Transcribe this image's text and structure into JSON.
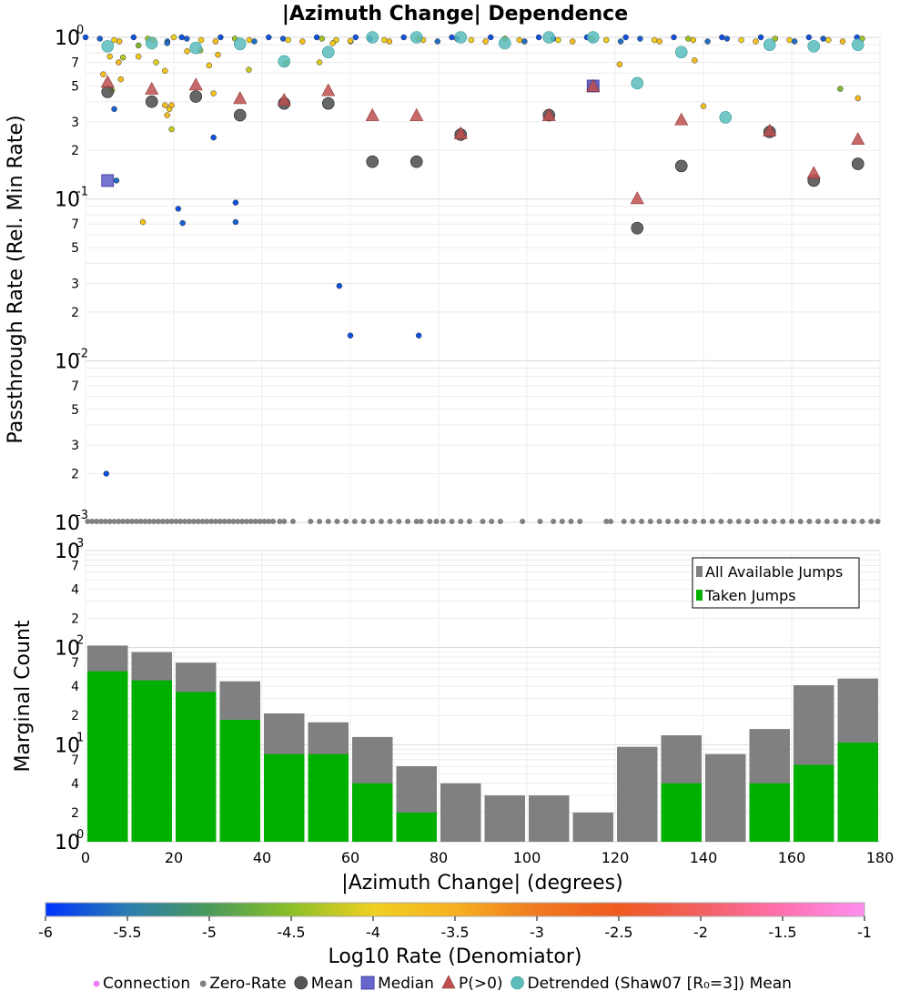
{
  "title": "|Azimuth Change| Dependence",
  "chart_data": [
    {
      "type": "scatter",
      "ylabel": "Passthrough Rate (Rel. Min Rate)",
      "yscale": "log",
      "ylim": [
        0.001,
        1
      ],
      "xlim": [
        0,
        180
      ],
      "grid": true,
      "y_ticks": [
        {
          "v": 1,
          "mant": "10",
          "exp": "0"
        },
        {
          "v": 0.7,
          "mant": "7",
          "exp": ""
        },
        {
          "v": 0.5,
          "mant": "5",
          "exp": ""
        },
        {
          "v": 0.3,
          "mant": "3",
          "exp": ""
        },
        {
          "v": 0.2,
          "mant": "2",
          "exp": ""
        },
        {
          "v": 0.1,
          "mant": "10",
          "exp": "-1"
        },
        {
          "v": 0.07,
          "mant": "7",
          "exp": ""
        },
        {
          "v": 0.05,
          "mant": "5",
          "exp": ""
        },
        {
          "v": 0.03,
          "mant": "3",
          "exp": ""
        },
        {
          "v": 0.02,
          "mant": "2",
          "exp": ""
        },
        {
          "v": 0.01,
          "mant": "10",
          "exp": "-2"
        },
        {
          "v": 0.007,
          "mant": "7",
          "exp": ""
        },
        {
          "v": 0.005,
          "mant": "5",
          "exp": ""
        },
        {
          "v": 0.003,
          "mant": "3",
          "exp": ""
        },
        {
          "v": 0.002,
          "mant": "2",
          "exp": ""
        },
        {
          "v": 0.001,
          "mant": "10",
          "exp": "-3"
        }
      ],
      "series": [
        {
          "name": "Mean",
          "color": "#555555",
          "x": [
            5,
            15,
            25,
            35,
            45,
            55,
            65,
            75,
            85,
            105,
            115,
            125,
            135,
            155,
            165,
            175
          ],
          "y": [
            0.46,
            0.4,
            0.43,
            0.33,
            0.39,
            0.39,
            0.17,
            0.17,
            0.25,
            0.33,
            0.5,
            0.066,
            0.16,
            0.26,
            0.13,
            0.165
          ]
        },
        {
          "name": "Median",
          "color": "#6666cc",
          "x": [
            5,
            115
          ],
          "y": [
            0.13,
            0.5
          ]
        },
        {
          "name": "P(>0)",
          "color": "#c05050",
          "x": [
            5,
            15,
            25,
            35,
            45,
            55,
            65,
            75,
            85,
            105,
            115,
            125,
            135,
            155,
            165,
            175
          ],
          "y": [
            0.53,
            0.48,
            0.51,
            0.42,
            0.41,
            0.47,
            0.33,
            0.33,
            0.255,
            0.33,
            0.5,
            0.101,
            0.31,
            0.265,
            0.145,
            0.235
          ]
        },
        {
          "name": "Detrended (Shaw07 [R₀=3]) Mean",
          "color": "#5bbcbc",
          "x": [
            5,
            15,
            25,
            35,
            45,
            55,
            65,
            75,
            85,
            95,
            105,
            115,
            125,
            135,
            145,
            155,
            165,
            175
          ],
          "y": [
            0.88,
            0.92,
            0.86,
            0.91,
            0.71,
            0.81,
            1.0,
            1.0,
            1.0,
            0.92,
            1.0,
            1.0,
            0.52,
            0.81,
            0.32,
            0.9,
            0.88,
            0.9
          ]
        },
        {
          "name": "Connection",
          "points": [
            {
              "x": 4.7,
              "y": 0.002,
              "r": -5.8
            },
            {
              "x": 6.5,
              "y": 0.36,
              "r": -5.7
            },
            {
              "x": 7,
              "y": 0.13,
              "r": -5.6
            },
            {
              "x": 21,
              "y": 0.087,
              "r": -5.8
            },
            {
              "x": 22,
              "y": 0.071,
              "r": -5.7
            },
            {
              "x": 29,
              "y": 0.24,
              "r": -5.8
            },
            {
              "x": 34,
              "y": 0.095,
              "r": -5.8
            },
            {
              "x": 34,
              "y": 0.072,
              "r": -5.7
            },
            {
              "x": 57.5,
              "y": 0.029,
              "r": -5.8
            },
            {
              "x": 60,
              "y": 0.0143,
              "r": -5.8
            },
            {
              "x": 75.5,
              "y": 0.0143,
              "r": -5.8
            },
            {
              "x": 6,
              "y": 0.47,
              "r": -4.2
            },
            {
              "x": 4,
              "y": 0.59,
              "r": -3.7
            },
            {
              "x": 5.5,
              "y": 0.76,
              "r": -3.8
            },
            {
              "x": 7.5,
              "y": 0.7,
              "r": -3.6
            },
            {
              "x": 8,
              "y": 0.55,
              "r": -3.7
            },
            {
              "x": 8.5,
              "y": 0.75,
              "r": -4.3
            },
            {
              "x": 12,
              "y": 0.76,
              "r": -3.9
            },
            {
              "x": 13,
              "y": 0.072,
              "r": -3.8
            },
            {
              "x": 12,
              "y": 0.89,
              "r": -4.6
            },
            {
              "x": 16,
              "y": 0.7,
              "r": -4.1
            },
            {
              "x": 18,
              "y": 0.62,
              "r": -3.8
            },
            {
              "x": 18,
              "y": 0.38,
              "r": -3.7
            },
            {
              "x": 18.5,
              "y": 0.33,
              "r": -3.7
            },
            {
              "x": 19,
              "y": 0.36,
              "r": -3.9
            },
            {
              "x": 19.5,
              "y": 0.38,
              "r": -3.6
            },
            {
              "x": 19.5,
              "y": 0.27,
              "r": -4.2
            },
            {
              "x": 18.5,
              "y": 0.92,
              "r": -5.6
            },
            {
              "x": 23,
              "y": 0.82,
              "r": -3.8
            },
            {
              "x": 26,
              "y": 0.83,
              "r": -4.3
            },
            {
              "x": 28,
              "y": 0.67,
              "r": -3.9
            },
            {
              "x": 29,
              "y": 0.45,
              "r": -3.8
            },
            {
              "x": 30,
              "y": 0.78,
              "r": -3.7
            },
            {
              "x": 37,
              "y": 0.63,
              "r": -4.2
            },
            {
              "x": 45.5,
              "y": 0.69,
              "r": -4.5
            },
            {
              "x": 53,
              "y": 0.7,
              "r": -4.1
            },
            {
              "x": 56,
              "y": 0.92,
              "r": -3.9
            },
            {
              "x": 121,
              "y": 0.68,
              "r": -3.7
            },
            {
              "x": 138,
              "y": 0.72,
              "r": -3.7
            },
            {
              "x": 140,
              "y": 0.375,
              "r": -3.7
            },
            {
              "x": 171,
              "y": 0.48,
              "r": -4.6
            },
            {
              "x": 175,
              "y": 0.42,
              "r": -3.6
            },
            {
              "x": 155,
              "y": 0.265,
              "r": -4.8
            },
            {
              "x": 20,
              "y": 1.0,
              "r": -4.0
            },
            {
              "x": 60,
              "y": 0.95,
              "r": -3.8
            }
          ]
        },
        {
          "name": "Zero-Rate",
          "color": "#808080",
          "x": [
            0.5,
            1.5,
            2.5,
            3.5,
            4.5,
            5.5,
            6.5,
            7.5,
            8.5,
            9.5,
            10.5,
            11.5,
            12.5,
            13.5,
            14.5,
            15.5,
            16.5,
            17.5,
            18.5,
            19.5,
            20.5,
            21.5,
            22.5,
            23.5,
            24.5,
            25.5,
            26.5,
            27.5,
            28.5,
            29.5,
            30.5,
            31.5,
            32.5,
            33.5,
            34.5,
            35.5,
            36.5,
            37.5,
            38.5,
            39.5,
            40.5,
            41.5,
            42.5,
            44,
            45,
            47,
            51,
            53,
            55,
            57,
            59,
            61,
            63,
            65,
            67,
            69,
            71,
            73,
            75,
            76,
            78,
            79.5,
            81,
            83,
            85,
            87,
            90,
            92,
            94,
            99,
            103,
            106,
            108,
            110,
            112,
            118,
            119,
            122,
            124,
            126,
            128,
            130,
            132,
            134,
            136,
            138,
            140,
            142,
            144,
            146,
            148,
            150,
            152,
            154,
            156,
            158,
            160,
            162,
            164,
            166,
            168,
            170,
            172,
            174,
            176,
            178,
            179.5
          ],
          "y": 0.001
        }
      ]
    },
    {
      "type": "bar",
      "ylabel": "Marginal Count",
      "xlabel": "|Azimuth Change| (degrees)",
      "yscale": "log",
      "ylim": [
        1,
        1000
      ],
      "xlim": [
        0,
        180
      ],
      "x_ticks": [
        "0",
        "20",
        "40",
        "60",
        "80",
        "100",
        "120",
        "140",
        "160",
        "180"
      ],
      "y_ticks": [
        {
          "v": 1000,
          "mant": "10",
          "exp": "3"
        },
        {
          "v": 700,
          "mant": "7",
          "exp": ""
        },
        {
          "v": 400,
          "mant": "4",
          "exp": ""
        },
        {
          "v": 200,
          "mant": "2",
          "exp": ""
        },
        {
          "v": 100,
          "mant": "10",
          "exp": "2"
        },
        {
          "v": 70,
          "mant": "7",
          "exp": ""
        },
        {
          "v": 40,
          "mant": "4",
          "exp": ""
        },
        {
          "v": 20,
          "mant": "2",
          "exp": ""
        },
        {
          "v": 10,
          "mant": "10",
          "exp": "1"
        },
        {
          "v": 7,
          "mant": "7",
          "exp": ""
        },
        {
          "v": 4,
          "mant": "4",
          "exp": ""
        },
        {
          "v": 2,
          "mant": "2",
          "exp": ""
        },
        {
          "v": 1,
          "mant": "10",
          "exp": "0"
        }
      ],
      "bin_centers": [
        5,
        15,
        25,
        35,
        45,
        55,
        65,
        75,
        85,
        95,
        105,
        115,
        125,
        135,
        145,
        155,
        165,
        175
      ],
      "legend": {
        "position": "top-right"
      },
      "series": [
        {
          "name": "All Available Jumps",
          "color": "#808080",
          "values": [
            105,
            90,
            70,
            45,
            21,
            17,
            12,
            6,
            4,
            3,
            3,
            2,
            9.5,
            12.5,
            8,
            14.5,
            41,
            48
          ]
        },
        {
          "name": "Taken Jumps",
          "color": "#00b000",
          "values": [
            57,
            46,
            35,
            18,
            8,
            8,
            4,
            2,
            0,
            0,
            0,
            0,
            0,
            4,
            0,
            4,
            6.2,
            10.5
          ]
        }
      ]
    },
    {
      "type": "colorbar",
      "label": "Log10 Rate (Denomiator)",
      "range": [
        -6,
        -1
      ],
      "ticks": [
        "-6",
        "-5.5",
        "-5",
        "-4.5",
        "-4",
        "-3.5",
        "-3",
        "-2.5",
        "-2",
        "-1.5",
        "-1"
      ],
      "stops": [
        "#0033ff",
        "#2a7db0",
        "#4a9a5a",
        "#8cc028",
        "#f0d020",
        "#f7b020",
        "#f07a20",
        "#f05a20",
        "#f26060",
        "#ff70b0",
        "#ff90f0"
      ]
    }
  ],
  "legend_items": [
    {
      "label": "Connection",
      "color": "#ee82ee",
      "shape": "dot-small"
    },
    {
      "label": "Zero-Rate",
      "color": "#808080",
      "shape": "dot-small"
    },
    {
      "label": "Mean",
      "color": "#555555",
      "shape": "circle"
    },
    {
      "label": "Median",
      "color": "#6666cc",
      "shape": "square"
    },
    {
      "label": "P(>0)",
      "color": "#c05050",
      "shape": "triangle"
    },
    {
      "label": "Detrended (Shaw07 [R₀=3]) Mean",
      "color": "#5bbcbc",
      "shape": "circle-teal"
    }
  ]
}
